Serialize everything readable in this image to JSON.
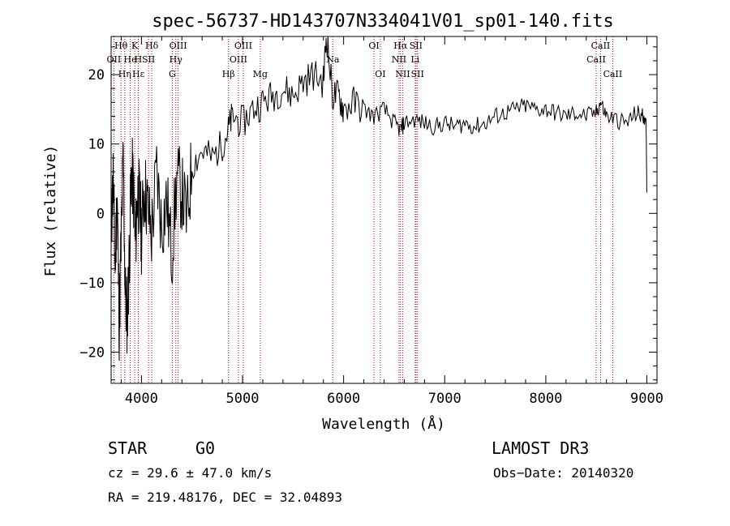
{
  "chart_data": {
    "type": "line",
    "title": "spec-56737-HD143707N334041V01_sp01-140.fits",
    "xlabel": "Wavelength (Å)",
    "ylabel": "Flux (relative)",
    "xlim": [
      3700,
      9100
    ],
    "ylim": [
      -24.5,
      25.5
    ],
    "xticks": [
      4000,
      5000,
      6000,
      7000,
      8000,
      9000
    ],
    "yticks": [
      -20,
      -10,
      0,
      10,
      20
    ],
    "tick_labels_x": [
      "4000",
      "5000",
      "6000",
      "7000",
      "8000",
      "9000"
    ],
    "tick_labels_y": [
      "−20",
      "−10",
      "0",
      "10",
      "20"
    ],
    "series": [
      {
        "name": "flux",
        "x": [
          3700,
          3720,
          3740,
          3760,
          3780,
          3800,
          3820,
          3840,
          3860,
          3880,
          3900,
          3920,
          3940,
          3960,
          3980,
          4000,
          4030,
          4060,
          4100,
          4150,
          4200,
          4250,
          4300,
          4350,
          4400,
          4450,
          4500,
          4600,
          4700,
          4800,
          4860,
          4900,
          5000,
          5100,
          5200,
          5300,
          5400,
          5500,
          5600,
          5700,
          5800,
          5830,
          5890,
          5950,
          6000,
          6100,
          6200,
          6300,
          6400,
          6500,
          6563,
          6600,
          6700,
          6800,
          6900,
          7000,
          7100,
          7200,
          7300,
          7400,
          7500,
          7600,
          7700,
          7800,
          7900,
          8000,
          8100,
          8200,
          8300,
          8400,
          8500,
          8540,
          8600,
          8700,
          8800,
          8900,
          8950,
          8990,
          9000
        ],
        "y": [
          -2,
          5,
          -8,
          3,
          -16,
          -4,
          8,
          -12,
          -15,
          -6,
          6,
          4,
          -5,
          3,
          2,
          -3,
          4,
          1,
          -3,
          6,
          -2,
          2,
          -6,
          5,
          3,
          -1,
          7,
          9,
          8,
          10,
          12,
          14,
          13,
          15,
          16,
          17,
          18,
          17,
          19,
          20,
          19,
          26,
          17,
          17,
          15,
          16,
          15,
          14,
          15,
          13,
          12,
          13,
          13.5,
          13,
          12.5,
          13,
          12.5,
          13,
          12.5,
          13,
          14,
          14.5,
          15,
          15.5,
          15,
          15,
          14.5,
          14,
          14.5,
          14,
          14.5,
          16,
          14,
          13.5,
          13,
          14.5,
          14,
          14,
          3
        ]
      }
    ],
    "spectral_lines": [
      {
        "label": "Hθ",
        "wavelength": 3798,
        "row": 0
      },
      {
        "label": "OII",
        "wavelength": 3727,
        "row": 1
      },
      {
        "label": "Hη",
        "wavelength": 3835,
        "row": 2
      },
      {
        "label": "K",
        "wavelength": 3934,
        "row": 0
      },
      {
        "label": "He",
        "wavelength": 3889,
        "row": 1
      },
      {
        "label": "Hε",
        "wavelength": 3970,
        "row": 2
      },
      {
        "label": "H",
        "wavelength": 3968,
        "row": 1
      },
      {
        "label": "SII",
        "wavelength": 4070,
        "row": 1
      },
      {
        "label": "Hδ",
        "wavelength": 4102,
        "row": 0
      },
      {
        "label": "OIII",
        "wavelength": 4363,
        "row": 0
      },
      {
        "label": "Hγ",
        "wavelength": 4340,
        "row": 1
      },
      {
        "label": "G",
        "wavelength": 4305,
        "row": 2
      },
      {
        "label": "Hβ",
        "wavelength": 4861,
        "row": 2
      },
      {
        "label": "OIII",
        "wavelength": 5007,
        "row": 0
      },
      {
        "label": "OIII",
        "wavelength": 4959,
        "row": 1
      },
      {
        "label": "Mg",
        "wavelength": 5175,
        "row": 2
      },
      {
        "label": "Na",
        "wavelength": 5893,
        "row": 1
      },
      {
        "label": "OI",
        "wavelength": 6300,
        "row": 0
      },
      {
        "label": "OI",
        "wavelength": 6363,
        "row": 2
      },
      {
        "label": "Hα",
        "wavelength": 6563,
        "row": 0
      },
      {
        "label": "SII",
        "wavelength": 6716,
        "row": 0
      },
      {
        "label": "NII",
        "wavelength": 6548,
        "row": 1
      },
      {
        "label": "Li",
        "wavelength": 6708,
        "row": 1
      },
      {
        "label": "NII",
        "wavelength": 6584,
        "row": 2
      },
      {
        "label": "SII",
        "wavelength": 6731,
        "row": 2
      },
      {
        "label": "CaII",
        "wavelength": 8542,
        "row": 0
      },
      {
        "label": "CaII",
        "wavelength": 8498,
        "row": 1
      },
      {
        "label": "CaII",
        "wavelength": 8662,
        "row": 2
      }
    ]
  },
  "info": {
    "class": "STAR",
    "subclass": "G0",
    "survey": "LAMOST DR3",
    "cz": "cz = 29.6 ± 47.0 km/s",
    "obs_date": "Obs−Date: 20140320",
    "radec": "RA = 219.48176, DEC =  32.04893"
  },
  "colors": {
    "spectrum": "#000000",
    "line_marker": "#c8000a",
    "axis": "#000000",
    "background": "#ffffff"
  }
}
